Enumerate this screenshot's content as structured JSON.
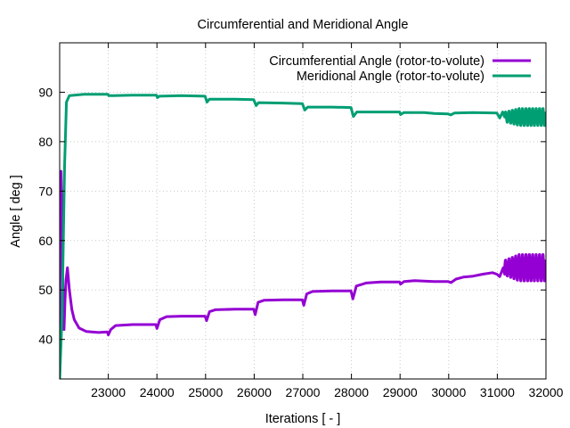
{
  "chart_data": {
    "type": "line",
    "title": "Circumferential and Meridional Angle",
    "xlabel": "Iterations [ - ]",
    "ylabel": "Angle [ deg ]",
    "xlim": [
      22000,
      32000
    ],
    "ylim": [
      32,
      100
    ],
    "xticks": [
      23000,
      24000,
      25000,
      26000,
      27000,
      28000,
      29000,
      30000,
      31000,
      32000
    ],
    "yticks": [
      40,
      50,
      60,
      70,
      80,
      90
    ],
    "grid": true,
    "legend_position": "top-right",
    "series": [
      {
        "name": "Circumferential Angle (rotor-to-volute)",
        "color": "#9400d3",
        "points": [
          [
            22000,
            32
          ],
          [
            22010,
            70
          ],
          [
            22030,
            74
          ],
          [
            22050,
            60
          ],
          [
            22070,
            48
          ],
          [
            22090,
            42
          ],
          [
            22110,
            48
          ],
          [
            22130,
            52
          ],
          [
            22160,
            54.5
          ],
          [
            22200,
            50
          ],
          [
            22250,
            46
          ],
          [
            22300,
            44
          ],
          [
            22400,
            42.3
          ],
          [
            22550,
            41.6
          ],
          [
            22800,
            41.4
          ],
          [
            22980,
            41.5
          ],
          [
            23000,
            40.9
          ],
          [
            23050,
            42
          ],
          [
            23150,
            42.8
          ],
          [
            23500,
            43
          ],
          [
            23980,
            43
          ],
          [
            24000,
            42.2
          ],
          [
            24060,
            44
          ],
          [
            24200,
            44.6
          ],
          [
            24500,
            44.7
          ],
          [
            24990,
            44.7
          ],
          [
            25020,
            43.8
          ],
          [
            25080,
            45.6
          ],
          [
            25200,
            46
          ],
          [
            25600,
            46.1
          ],
          [
            25990,
            46.1
          ],
          [
            26020,
            45
          ],
          [
            26080,
            47.5
          ],
          [
            26200,
            47.9
          ],
          [
            26600,
            48
          ],
          [
            26990,
            48
          ],
          [
            27020,
            46.9
          ],
          [
            27080,
            49.2
          ],
          [
            27200,
            49.7
          ],
          [
            27600,
            49.8
          ],
          [
            27990,
            49.8
          ],
          [
            28030,
            48.2
          ],
          [
            28100,
            50.8
          ],
          [
            28300,
            51.4
          ],
          [
            28600,
            51.6
          ],
          [
            28990,
            51.6
          ],
          [
            29010,
            51.2
          ],
          [
            29080,
            51.7
          ],
          [
            29300,
            51.9
          ],
          [
            29500,
            51.8
          ],
          [
            29700,
            51.7
          ],
          [
            29990,
            51.7
          ],
          [
            30050,
            51.5
          ],
          [
            30150,
            52.2
          ],
          [
            30300,
            52.6
          ],
          [
            30500,
            52.8
          ],
          [
            30700,
            53.2
          ],
          [
            30900,
            53.5
          ],
          [
            30990,
            53.2
          ],
          [
            31050,
            52.7
          ],
          [
            31120,
            54.5
          ],
          [
            31150,
            53.2
          ]
        ],
        "oscillation": {
          "x_start": 31150,
          "x_end": 32000,
          "center": 54.5,
          "amplitude": 2.8,
          "period": 70
        }
      },
      {
        "name": "Meridional Angle (rotor-to-volute)",
        "color": "#009e73",
        "points": [
          [
            22000,
            32
          ],
          [
            22050,
            45
          ],
          [
            22100,
            75
          ],
          [
            22140,
            88
          ],
          [
            22200,
            89.3
          ],
          [
            22500,
            89.6
          ],
          [
            22990,
            89.6
          ],
          [
            23010,
            89.3
          ],
          [
            23500,
            89.4
          ],
          [
            23990,
            89.4
          ],
          [
            24010,
            88.9
          ],
          [
            24050,
            89.2
          ],
          [
            24500,
            89.3
          ],
          [
            24990,
            89.2
          ],
          [
            25030,
            88
          ],
          [
            25080,
            88.6
          ],
          [
            25600,
            88.6
          ],
          [
            25990,
            88.5
          ],
          [
            26040,
            87.3
          ],
          [
            26090,
            87.9
          ],
          [
            26600,
            87.8
          ],
          [
            26990,
            87.7
          ],
          [
            27040,
            86.4
          ],
          [
            27100,
            87
          ],
          [
            27600,
            87
          ],
          [
            27990,
            86.9
          ],
          [
            28040,
            85.1
          ],
          [
            28110,
            86
          ],
          [
            28600,
            86
          ],
          [
            28990,
            86
          ],
          [
            29010,
            85.5
          ],
          [
            29080,
            85.9
          ],
          [
            29500,
            85.9
          ],
          [
            29700,
            85.7
          ],
          [
            29990,
            85.6
          ],
          [
            30040,
            85.4
          ],
          [
            30120,
            85.8
          ],
          [
            30500,
            85.9
          ],
          [
            30990,
            85.8
          ],
          [
            31050,
            84.8
          ],
          [
            31110,
            86
          ],
          [
            31150,
            85
          ]
        ],
        "oscillation": {
          "x_start": 31150,
          "x_end": 32000,
          "center": 85,
          "amplitude": 1.8,
          "period": 70
        }
      }
    ]
  }
}
